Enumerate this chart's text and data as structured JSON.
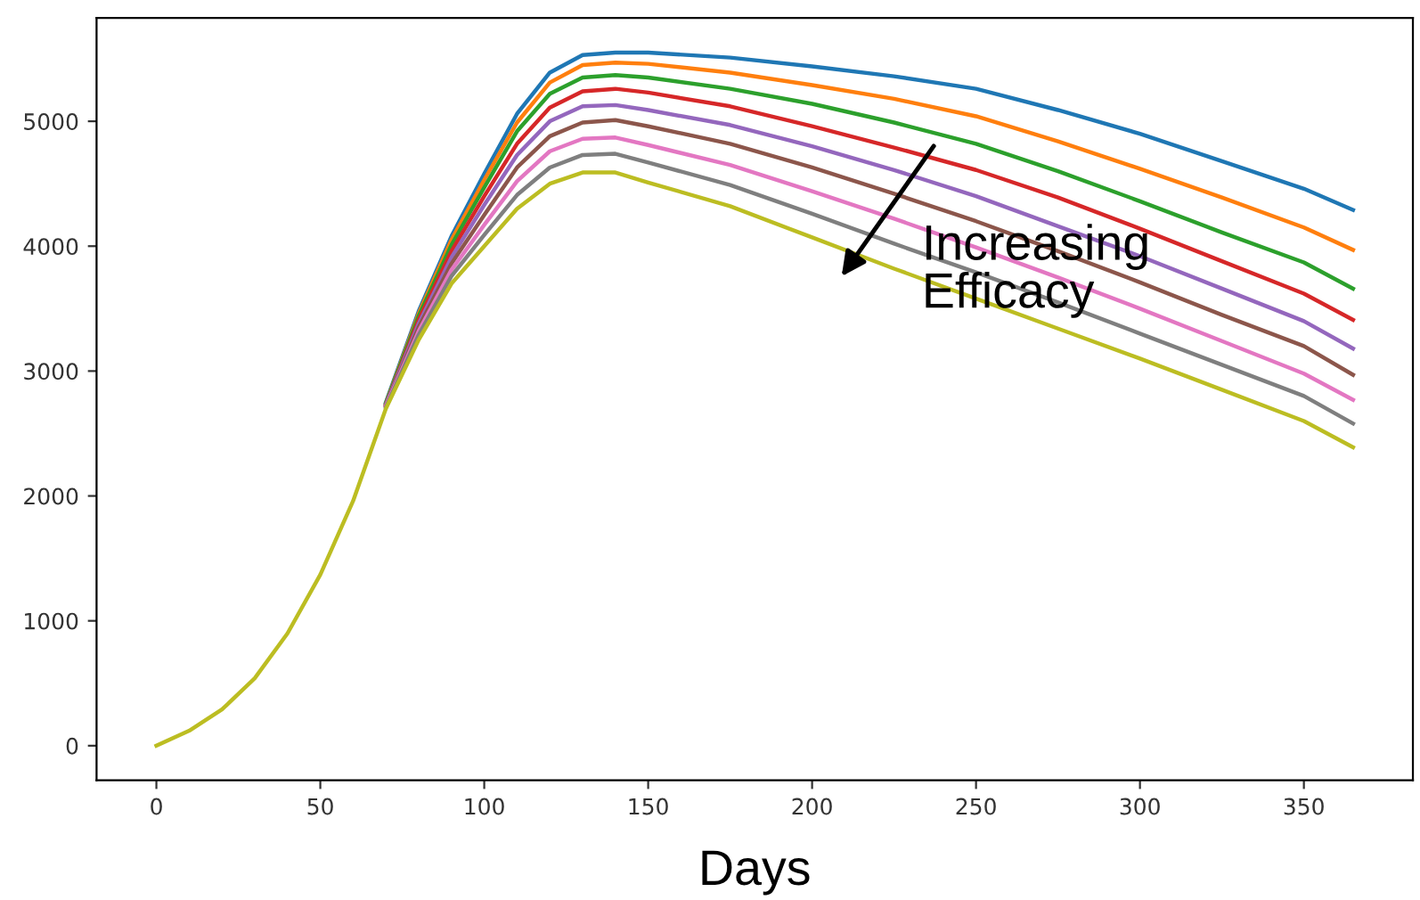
{
  "chart_data": {
    "type": "line",
    "xlabel": "Days",
    "x": [
      0,
      10,
      20,
      30,
      40,
      50,
      60,
      70,
      80,
      90,
      100,
      110,
      120,
      130,
      140,
      150,
      175,
      200,
      225,
      250,
      275,
      300,
      325,
      350,
      365
    ],
    "series": [
      {
        "color": "#1f77b4",
        "values": [
          null,
          null,
          null,
          null,
          null,
          null,
          null,
          2750,
          3480,
          4080,
          4580,
          5060,
          5390,
          5530,
          5550,
          5550,
          5510,
          5440,
          5360,
          5260,
          5090,
          4900,
          4680,
          4460,
          4290
        ]
      },
      {
        "color": "#ff7f0e",
        "values": [
          null,
          null,
          null,
          null,
          null,
          null,
          null,
          2740,
          3460,
          4050,
          4530,
          4990,
          5310,
          5450,
          5470,
          5460,
          5390,
          5290,
          5180,
          5040,
          4840,
          4620,
          4390,
          4150,
          3970
        ]
      },
      {
        "color": "#2ca02c",
        "values": [
          null,
          null,
          null,
          null,
          null,
          null,
          null,
          2740,
          3440,
          4010,
          4470,
          4920,
          5220,
          5350,
          5370,
          5350,
          5260,
          5140,
          4990,
          4820,
          4600,
          4360,
          4110,
          3870,
          3660
        ]
      },
      {
        "color": "#d62728",
        "values": [
          null,
          null,
          null,
          null,
          null,
          null,
          null,
          2730,
          3410,
          3960,
          4400,
          4820,
          5110,
          5240,
          5260,
          5230,
          5120,
          4960,
          4790,
          4610,
          4390,
          4140,
          3880,
          3620,
          3410
        ]
      },
      {
        "color": "#9467bd",
        "values": [
          null,
          null,
          null,
          null,
          null,
          null,
          null,
          2730,
          3380,
          3910,
          4330,
          4730,
          5000,
          5120,
          5130,
          5090,
          4970,
          4800,
          4610,
          4400,
          4160,
          3920,
          3660,
          3400,
          3180
        ]
      },
      {
        "color": "#8c564b",
        "values": [
          null,
          null,
          null,
          null,
          null,
          null,
          null,
          2720,
          3350,
          3860,
          4250,
          4630,
          4880,
          4990,
          5010,
          4960,
          4820,
          4630,
          4420,
          4200,
          3960,
          3710,
          3450,
          3200,
          2970
        ]
      },
      {
        "color": "#e377c2",
        "values": [
          null,
          null,
          null,
          null,
          null,
          null,
          null,
          2720,
          3320,
          3810,
          4170,
          4520,
          4760,
          4860,
          4870,
          4810,
          4650,
          4440,
          4220,
          3990,
          3750,
          3500,
          3240,
          2980,
          2770
        ]
      },
      {
        "color": "#7f7f7f",
        "values": [
          null,
          null,
          null,
          null,
          null,
          null,
          null,
          2710,
          3290,
          3760,
          4090,
          4410,
          4630,
          4730,
          4740,
          4670,
          4490,
          4260,
          4020,
          3790,
          3550,
          3300,
          3050,
          2800,
          2580
        ]
      },
      {
        "color": "#bcbd22",
        "values": [
          0,
          120,
          290,
          540,
          900,
          1370,
          1960,
          2700,
          3250,
          3700,
          4000,
          4300,
          4500,
          4590,
          4590,
          4510,
          4320,
          4070,
          3820,
          3580,
          3340,
          3100,
          2850,
          2600,
          2390
        ]
      }
    ],
    "annotations": [
      "Increasing\nEfficacy"
    ],
    "xlim": [
      -18.25,
      383.25
    ],
    "ylim": [
      -277,
      5827
    ],
    "xticks": [
      0,
      50,
      100,
      150,
      200,
      250,
      300,
      350
    ],
    "yticks": [
      0,
      1000,
      2000,
      3000,
      4000,
      5000
    ],
    "grid": false,
    "legend": false,
    "line_style": "solid",
    "marker": "none"
  }
}
